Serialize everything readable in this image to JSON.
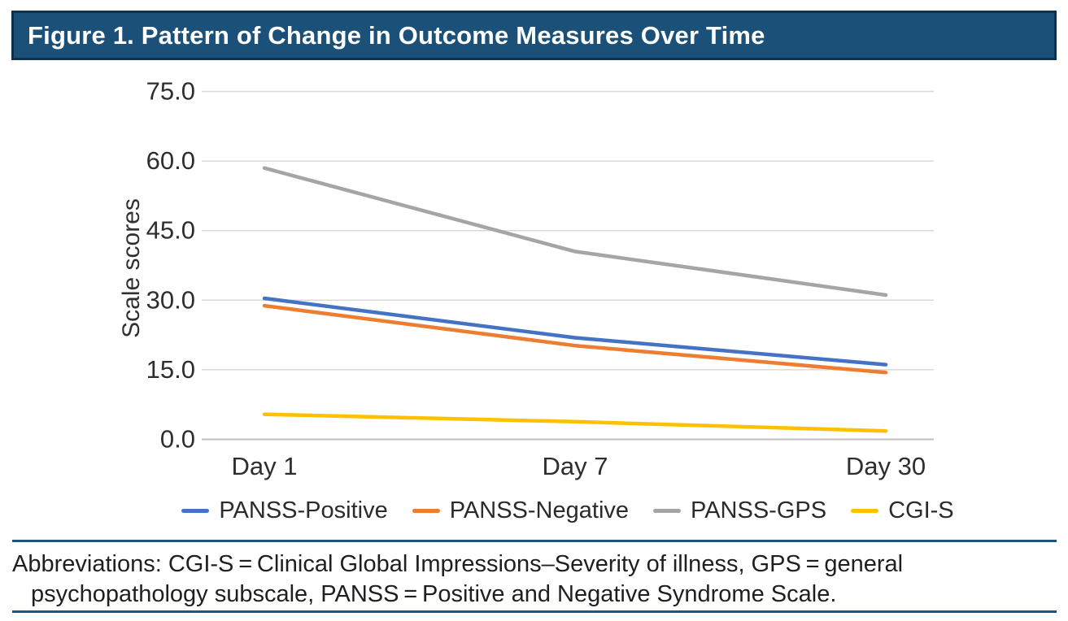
{
  "figure": {
    "title": "Figure 1. Pattern of Change in Outcome Measures Over Time"
  },
  "chart_data": {
    "type": "line",
    "categories": [
      "Day 1",
      "Day 7",
      "Day 30"
    ],
    "series": [
      {
        "name": "PANSS-Positive",
        "color": "#4472C4",
        "values": [
          30.4,
          21.9,
          16.1
        ]
      },
      {
        "name": "PANSS-Negative",
        "color": "#ED7D31",
        "values": [
          28.8,
          20.2,
          14.4
        ]
      },
      {
        "name": "PANSS-GPS",
        "color": "#A5A5A5",
        "values": [
          58.5,
          40.5,
          31.1
        ]
      },
      {
        "name": "CGI-S",
        "color": "#FFC000",
        "values": [
          5.4,
          3.8,
          1.8
        ]
      }
    ],
    "title": "",
    "xlabel": "",
    "ylabel": "Scale scores",
    "ylim": [
      0,
      75
    ],
    "yticks": [
      "0.0",
      "15.0",
      "30.0",
      "45.0",
      "60.0",
      "75.0"
    ],
    "grid": true,
    "legend_position": "bottom"
  },
  "footer": {
    "lines": [
      "Abbreviations: CGI-S = Clinical Global Impressions–Severity of illness, GPS = general",
      "psychopathology subscale, PANSS = Positive and Negative Syndrome Scale."
    ]
  },
  "colors": {
    "header_bg": "#1b5078",
    "header_border": "#0c3050",
    "rule": "#1c5680",
    "gridline": "#d9d9d9",
    "axis_line": "#bfbfbf",
    "tick_text": "#2e2e2e"
  }
}
